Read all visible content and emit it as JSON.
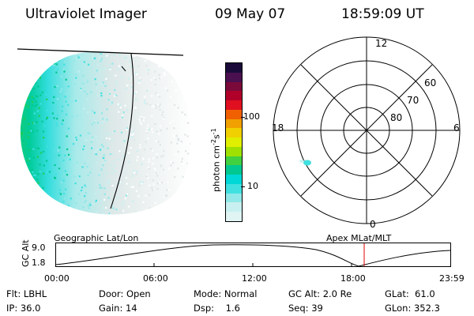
{
  "header": {
    "title": "Ultraviolet Imager",
    "date": "09 May 07",
    "time": "18:59:09 UT"
  },
  "colorbar": {
    "unit_label": "photon cm",
    "unit_sup1": "-2",
    "unit_mid": "s",
    "unit_sup2": "-1",
    "ticks": [
      "100",
      "10"
    ],
    "colors": [
      "#1a0a3a",
      "#4a1050",
      "#7a0a3a",
      "#b0002a",
      "#e01020",
      "#f06000",
      "#f0a000",
      "#f0d000",
      "#e0ee00",
      "#a0e000",
      "#40d040",
      "#00c890",
      "#00d8d8",
      "#40e0e0",
      "#90e8e8",
      "#c8f0f0",
      "#e0f4f4"
    ]
  },
  "polar": {
    "hour_labels": [
      "12",
      "18",
      "6",
      "0"
    ],
    "lat_labels": [
      "60",
      "70",
      "80"
    ]
  },
  "timeline": {
    "ylabel": "GC Alt",
    "y_ticks": [
      "9.0",
      "1.8"
    ],
    "left_label": "Geographic Lat/Lon",
    "right_label": "Apex  MLat/MLT",
    "x_ticks": [
      "00:00",
      "06:00",
      "12:00",
      "18:00",
      "23:59"
    ],
    "marker_color": "#e00000"
  },
  "info": {
    "flt": "Flt: LBHL",
    "ip": "IP: 36.0",
    "door": "Door: Open",
    "gain": "Gain: 14",
    "mode": "Mode: Normal",
    "dsp": "Dsp:    1.6",
    "gcalt": "GC Alt: 2.0 Re",
    "seq": "Seq: 39",
    "glat": "GLat:  61.0",
    "glon": "GLon: 352.3"
  }
}
